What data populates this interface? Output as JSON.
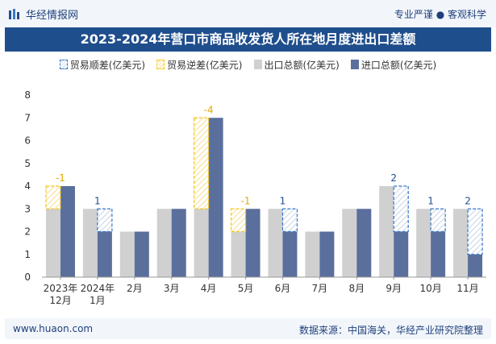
{
  "header": {
    "brand": "华经情报网",
    "tagline": "专业严谨 ● 客观科学"
  },
  "footer": {
    "url": "www.huaon.com",
    "source": "数据来源：中国海关，华经产业研究院整理"
  },
  "colors": {
    "export": "#d0d0d0",
    "import": "#5b6f9c",
    "surplus": "#3a78c9",
    "deficit": "#f5c518",
    "title_bg": "#1f4e8c"
  },
  "chart_data": {
    "type": "bar",
    "title": "2023-2024年营口市商品收发货人所在地月度进出口差额",
    "ylim": [
      0,
      8
    ],
    "yticks": [
      0,
      1,
      2,
      3,
      4,
      5,
      6,
      7,
      8
    ],
    "grid": false,
    "legend_position": "top",
    "categories": [
      "2023年12月",
      "2024年1月",
      "2月",
      "3月",
      "4月",
      "5月",
      "6月",
      "7月",
      "8月",
      "9月",
      "10月",
      "11月"
    ],
    "series": [
      {
        "name": "贸易顺差(亿美元)",
        "values": [
          null,
          1,
          null,
          null,
          null,
          null,
          1,
          null,
          null,
          2,
          1,
          2
        ]
      },
      {
        "name": "贸易逆差(亿美元)",
        "values": [
          -1,
          null,
          null,
          null,
          -4,
          -1,
          null,
          null,
          null,
          null,
          null,
          null
        ]
      },
      {
        "name": "出口总额(亿美元)",
        "values": [
          3,
          3,
          2,
          3,
          3,
          2,
          3,
          2,
          3,
          4,
          3,
          3
        ]
      },
      {
        "name": "进口总额(亿美元)",
        "values": [
          4,
          2,
          2,
          3,
          7,
          3,
          2,
          2,
          3,
          2,
          2,
          1
        ]
      }
    ],
    "balance_labels": [
      "-1",
      "1",
      "",
      "",
      "-4",
      "-1",
      "1",
      "",
      "",
      "2",
      "1",
      "2"
    ]
  }
}
